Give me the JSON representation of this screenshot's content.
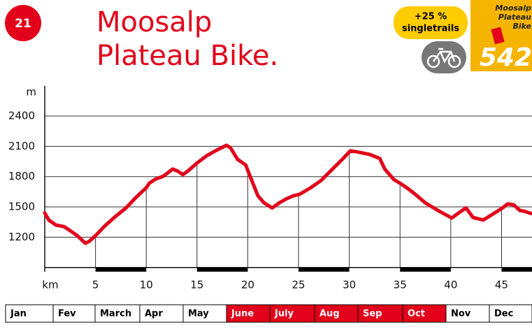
{
  "header": {
    "number": "21",
    "title": [
      "Moosalp",
      "Plateau Bike."
    ]
  },
  "badge": {
    "lines": [
      "+25 %",
      "singletrails"
    ]
  },
  "guide": {
    "lines": [
      "Moosalp",
      "Plateau",
      "Bike"
    ],
    "number": "542"
  },
  "chart_data": {
    "type": "line",
    "ylabel": "m",
    "xlabel": "km",
    "color": "#e2001a",
    "grid": true,
    "xlim": [
      0,
      48
    ],
    "ylim": [
      900,
      2700
    ],
    "xticks": [
      5,
      10,
      15,
      20,
      25,
      30,
      35,
      40,
      45
    ],
    "yticks": [
      1200,
      1500,
      1800,
      2100,
      2400
    ],
    "x": [
      0,
      0.4,
      1.1,
      1.9,
      2.5,
      3.2,
      4.0,
      4.4,
      5.0,
      5.9,
      6.9,
      8.0,
      9.0,
      10.0,
      10.3,
      10.9,
      11.7,
      12.6,
      13.1,
      13.6,
      14.1,
      15.0,
      16.0,
      16.9,
      17.9,
      18.3,
      19.0,
      19.8,
      20.3,
      21.0,
      21.6,
      22.4,
      23.1,
      23.8,
      24.5,
      25.1,
      26.2,
      27.2,
      28.2,
      29.3,
      30.1,
      30.8,
      32.0,
      33.0,
      33.5,
      34.4,
      35.0,
      35.8,
      36.5,
      37.5,
      38.9,
      40.1,
      40.9,
      41.5,
      42.2,
      43.2,
      44.0,
      45.1,
      45.6,
      46.2,
      46.8,
      47.3,
      47.9
    ],
    "values": [
      1440,
      1370,
      1320,
      1305,
      1265,
      1215,
      1140,
      1160,
      1215,
      1310,
      1400,
      1490,
      1595,
      1690,
      1735,
      1775,
      1805,
      1875,
      1855,
      1820,
      1855,
      1935,
      2010,
      2060,
      2110,
      2085,
      1970,
      1915,
      1785,
      1610,
      1540,
      1490,
      1540,
      1580,
      1610,
      1625,
      1690,
      1760,
      1860,
      1970,
      2055,
      2045,
      2020,
      1980,
      1875,
      1770,
      1735,
      1680,
      1625,
      1540,
      1455,
      1390,
      1450,
      1490,
      1395,
      1370,
      1420,
      1490,
      1530,
      1520,
      1465,
      1455,
      1435
    ]
  },
  "months": [
    {
      "name": "Jan",
      "active": false
    },
    {
      "name": "Fev",
      "active": false
    },
    {
      "name": "March",
      "active": false
    },
    {
      "name": "Apr",
      "active": false
    },
    {
      "name": "May",
      "active": false
    },
    {
      "name": "June",
      "active": true
    },
    {
      "name": "July",
      "active": true
    },
    {
      "name": "Aug",
      "active": true
    },
    {
      "name": "Sep",
      "active": true
    },
    {
      "name": "Oct",
      "active": true
    },
    {
      "name": "Nov",
      "active": false
    },
    {
      "name": "Dec",
      "active": false
    }
  ]
}
